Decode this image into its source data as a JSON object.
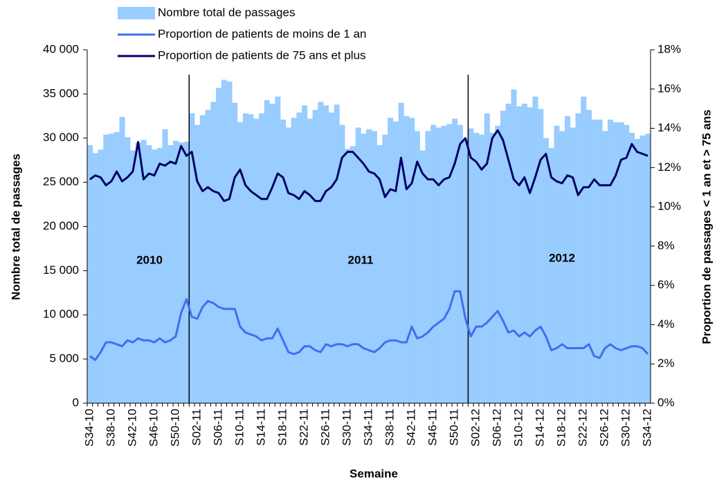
{
  "chart_data": {
    "type": "bar-line",
    "x_label": "Semaine",
    "y_label": "Nombre total de passages",
    "y2_label": "Proportion de passages < 1 an et > 75 ans",
    "categories": [
      "S34-10",
      null,
      null,
      null,
      "S38-10",
      null,
      null,
      null,
      "S42-10",
      null,
      null,
      null,
      "S46-10",
      null,
      null,
      null,
      "S50-10",
      null,
      null,
      null,
      "S02-11",
      null,
      null,
      null,
      "S06-11",
      null,
      null,
      null,
      "S10-11",
      null,
      null,
      null,
      "S14-11",
      null,
      null,
      null,
      "S18-11",
      null,
      null,
      null,
      "S22-11",
      null,
      null,
      null,
      "S26-11",
      null,
      null,
      null,
      "S30-11",
      null,
      null,
      null,
      "S34-11",
      null,
      null,
      null,
      "S38-11",
      null,
      null,
      null,
      "S42-11",
      null,
      null,
      null,
      "S46-11",
      null,
      null,
      null,
      "S50-11",
      null,
      null,
      null,
      "S02-12",
      null,
      null,
      null,
      "S06-12",
      null,
      null,
      null,
      "S10-12",
      null,
      null,
      null,
      "S14-12",
      null,
      null,
      null,
      "S18-12",
      null,
      null,
      null,
      "S22-12",
      null,
      null,
      null,
      "S26-12",
      null,
      null,
      null,
      "S30-12",
      null,
      null,
      null,
      "S34-12"
    ],
    "series": [
      {
        "name": "Nombre total de passages",
        "type": "bar",
        "color": "#99ccff",
        "values": [
          29200,
          28300,
          28700,
          30400,
          30500,
          30700,
          32400,
          30100,
          28600,
          29500,
          29800,
          29200,
          28700,
          28900,
          31000,
          29200,
          29700,
          29500,
          29600,
          32800,
          31500,
          32600,
          33200,
          34100,
          35700,
          36600,
          36400,
          34000,
          31800,
          32800,
          32700,
          32200,
          32800,
          34300,
          33900,
          34700,
          32100,
          31200,
          32300,
          32900,
          33700,
          32200,
          33200,
          34100,
          33700,
          32900,
          33800,
          31500,
          28800,
          29100,
          31200,
          30500,
          31000,
          30800,
          29200,
          30400,
          32300,
          31900,
          34000,
          32500,
          32300,
          30800,
          28600,
          30800,
          31500,
          31200,
          31400,
          31600,
          32200,
          31500,
          29700,
          31100,
          30600,
          30400,
          32800,
          30600,
          31400,
          33100,
          33900,
          35500,
          33600,
          33900,
          33500,
          34700,
          33300,
          30000,
          28900,
          31400,
          30800,
          32500,
          31200,
          32800,
          34700,
          33200,
          32100,
          32100,
          30800,
          32100,
          31800,
          31800,
          31500,
          30600,
          29900,
          30300,
          30500
        ]
      },
      {
        "name": "Proportion de patients de moins de 1 an",
        "type": "line",
        "axis": "y2",
        "color": "#3d6ff0",
        "values": [
          2.4,
          2.2,
          2.6,
          3.1,
          3.1,
          3.0,
          2.9,
          3.2,
          3.1,
          3.3,
          3.2,
          3.2,
          3.1,
          3.3,
          3.1,
          3.2,
          3.4,
          4.6,
          5.3,
          4.4,
          4.3,
          4.9,
          5.2,
          5.1,
          4.9,
          4.8,
          4.8,
          4.8,
          3.9,
          3.6,
          3.5,
          3.4,
          3.2,
          3.3,
          3.3,
          3.8,
          3.2,
          2.6,
          2.5,
          2.6,
          2.9,
          2.9,
          2.7,
          2.6,
          3.0,
          2.9,
          3.0,
          3.0,
          2.9,
          3.0,
          3.0,
          2.8,
          2.7,
          2.6,
          2.8,
          3.1,
          3.2,
          3.2,
          3.1,
          3.1,
          3.9,
          3.3,
          3.4,
          3.6,
          3.9,
          4.1,
          4.3,
          4.8,
          5.7,
          5.7,
          4.3,
          3.4,
          3.9,
          3.9,
          4.1,
          4.4,
          4.7,
          4.2,
          3.6,
          3.7,
          3.4,
          3.6,
          3.4,
          3.7,
          3.9,
          3.4,
          2.7,
          2.8,
          3.0,
          2.8,
          2.8,
          2.8,
          2.8,
          3.0,
          2.4,
          2.3,
          2.8,
          3.0,
          2.8,
          2.7,
          2.8,
          2.9,
          2.9,
          2.8,
          2.5
        ]
      },
      {
        "name": "Proportion de patients de 75 ans et plus",
        "type": "line",
        "axis": "y2",
        "color": "#000066",
        "values": [
          11.4,
          11.6,
          11.5,
          11.1,
          11.3,
          11.8,
          11.3,
          11.5,
          11.8,
          13.3,
          11.4,
          11.7,
          11.6,
          12.2,
          12.1,
          12.3,
          12.2,
          13.1,
          12.6,
          12.8,
          11.3,
          10.8,
          11.0,
          10.8,
          10.7,
          10.3,
          10.4,
          11.5,
          11.9,
          11.1,
          10.8,
          10.6,
          10.4,
          10.4,
          11.0,
          11.7,
          11.5,
          10.7,
          10.6,
          10.4,
          10.8,
          10.6,
          10.3,
          10.3,
          10.8,
          11.0,
          11.4,
          12.5,
          12.8,
          12.8,
          12.5,
          12.2,
          11.8,
          11.7,
          11.4,
          10.5,
          10.9,
          10.8,
          12.5,
          10.9,
          11.2,
          12.3,
          11.7,
          11.4,
          11.4,
          11.1,
          11.4,
          11.5,
          12.2,
          13.2,
          13.5,
          12.5,
          12.3,
          11.9,
          12.2,
          13.5,
          13.9,
          13.4,
          12.4,
          11.4,
          11.1,
          11.5,
          10.7,
          11.5,
          12.4,
          12.7,
          11.5,
          11.3,
          11.2,
          11.6,
          11.5,
          10.6,
          11.0,
          11.0,
          11.4,
          11.1,
          11.1,
          11.1,
          11.6,
          12.4,
          12.5,
          13.2,
          12.8,
          12.7,
          12.6
        ]
      }
    ],
    "ylim": [
      0,
      40000
    ],
    "yticks": [
      0,
      {
        "value": 5000,
        "label": "5 000"
      },
      {
        "value": 10000,
        "label": "10 000"
      },
      {
        "value": 15000,
        "label": "15 000"
      },
      {
        "value": 20000,
        "label": "20 000"
      },
      {
        "value": 25000,
        "label": "25 000"
      },
      {
        "value": 30000,
        "label": "30 000"
      },
      {
        "value": 35000,
        "label": "35 000"
      },
      {
        "value": 40000,
        "label": "40 000"
      }
    ],
    "y2lim": [
      0,
      18
    ],
    "y2ticks": [
      {
        "value": 0,
        "label": "0%"
      },
      {
        "value": 2,
        "label": "2%"
      },
      {
        "value": 4,
        "label": "4%"
      },
      {
        "value": 6,
        "label": "6%"
      },
      {
        "value": 8,
        "label": "8%"
      },
      {
        "value": 10,
        "label": "10%"
      },
      {
        "value": 12,
        "label": "12%"
      },
      {
        "value": 14,
        "label": "14%"
      },
      {
        "value": 16,
        "label": "16%"
      },
      {
        "value": 18,
        "label": "18%"
      }
    ],
    "annotations": [
      "2010",
      "2011",
      "2012"
    ],
    "legend": "top"
  }
}
